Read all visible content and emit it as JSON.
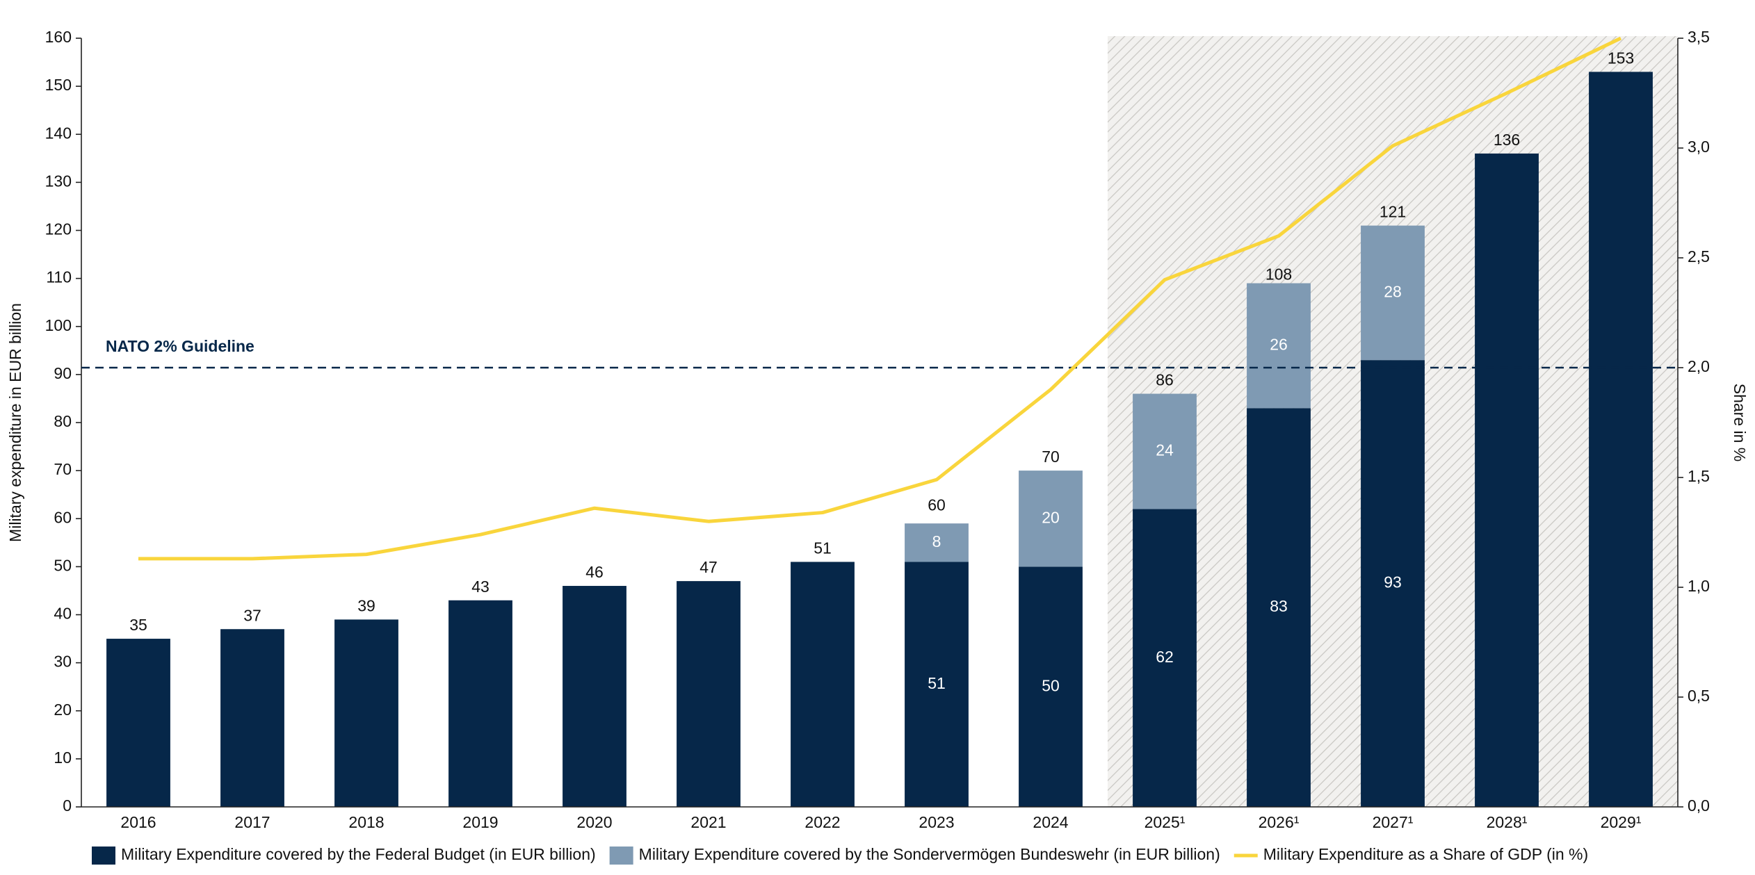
{
  "chart_data": {
    "type": "bar",
    "categories": [
      "2016",
      "2017",
      "2018",
      "2019",
      "2020",
      "2021",
      "2022",
      "2023",
      "2024",
      "2025¹",
      "2026¹",
      "2027¹",
      "2028¹",
      "2029¹"
    ],
    "series": [
      {
        "name": "Military Expenditure covered by the Federal Budget (in EUR billion)",
        "color": "#062749",
        "values": [
          35,
          37,
          39,
          43,
          46,
          47,
          51,
          51,
          50,
          62,
          83,
          93,
          136,
          153
        ]
      },
      {
        "name": "Military Expenditure covered by the Sondervermögen Bundeswehr (in EUR billion)",
        "color": "#7f9ab3",
        "values": [
          null,
          null,
          null,
          null,
          null,
          null,
          null,
          8,
          20,
          24,
          26,
          28,
          null,
          null
        ]
      },
      {
        "name": "Military Expenditure as a Share of GDP (in %)",
        "color": "#f9d53c",
        "type": "line",
        "axis": "y2",
        "values": [
          1.13,
          1.13,
          1.15,
          1.24,
          1.36,
          1.3,
          1.34,
          1.49,
          1.9,
          2.4,
          2.6,
          3.01,
          3.25,
          3.5
        ]
      }
    ],
    "totals": [
      35,
      37,
      39,
      43,
      46,
      47,
      51,
      60,
      70,
      86,
      108,
      121,
      136,
      153
    ],
    "y_label": "Military expenditure in EUR billion",
    "y2_label": "Share in %",
    "ylim": [
      0,
      160
    ],
    "yticks": [
      0,
      10,
      20,
      30,
      40,
      50,
      60,
      70,
      80,
      90,
      100,
      110,
      120,
      130,
      140,
      150,
      160
    ],
    "y2lim": [
      0,
      3.5
    ],
    "y2ticks": [
      {
        "value": 0,
        "label": "0,0"
      },
      {
        "value": 0.5,
        "label": "0,5"
      },
      {
        "value": 1,
        "label": "1,0"
      },
      {
        "value": 1.5,
        "label": "1,5"
      },
      {
        "value": 2,
        "label": "2,0"
      },
      {
        "value": 2.5,
        "label": "2,5"
      },
      {
        "value": 3,
        "label": "3,0"
      },
      {
        "value": 3.5,
        "label": "3,5"
      }
    ],
    "reference_line": {
      "label": "NATO 2% Guideline",
      "value": 2,
      "axis": "y2",
      "color": "#062749"
    },
    "shaded_range": [
      "2025¹",
      "2029¹"
    ],
    "grid": false,
    "legend": "bottom"
  }
}
